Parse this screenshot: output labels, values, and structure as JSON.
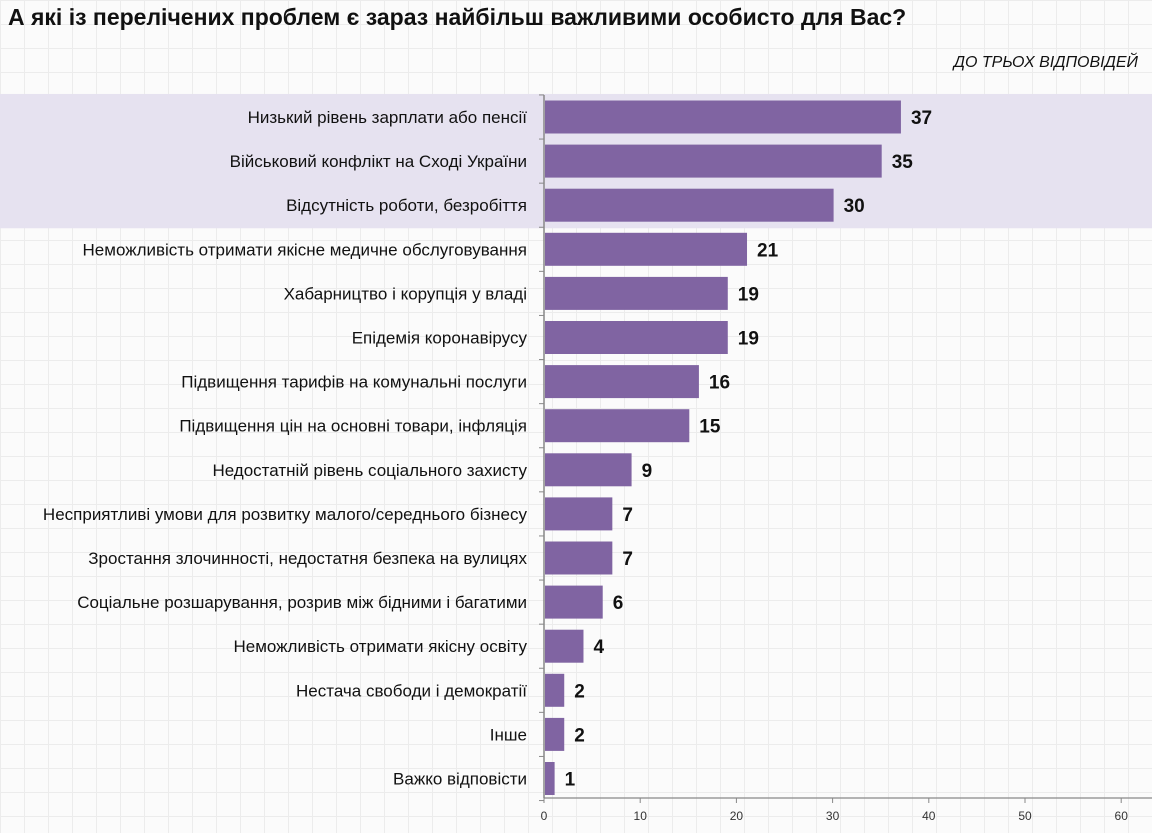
{
  "title": "А які із перелічених проблем є зараз найбільш важливими особисто для Вас?",
  "subtitle": "ДО ТРЬОХ ВІДПОВІДЕЙ",
  "colors": {
    "bar": "#8064a2",
    "highlight": "#e6e2f0",
    "axis": "#888888",
    "text": "#111111"
  },
  "chart_data": {
    "type": "bar",
    "orientation": "horizontal",
    "categories": [
      "Низький рівень зарплати або пенсії",
      "Військовий конфлікт на Сході України",
      "Відсутність роботи, безробіття",
      "Неможливість отримати якісне медичне обслуговування",
      "Хабарництво і корупція у владі",
      "Епідемія коронавірусу",
      "Підвищення тарифів на комунальні послуги",
      "Підвищення цін на основні товари, інфляція",
      "Недостатній рівень соціального захисту",
      "Несприятливі умови для розвитку малого/середнього бізнесу",
      "Зростання злочинності, недостатня безпека на вулицях",
      "Соціальне розшарування, розрив між бідними і багатими",
      "Неможливість отримати якісну освіту",
      "Нестача свободи і демократії",
      "Інше",
      "Важко відповісти"
    ],
    "values": [
      37,
      35,
      30,
      21,
      19,
      19,
      16,
      15,
      9,
      7,
      7,
      6,
      4,
      2,
      2,
      1
    ],
    "xlim": [
      0,
      60
    ],
    "xticks": [
      "0",
      "10",
      "20",
      "30",
      "40",
      "50",
      "60"
    ],
    "highlighted_top": 3,
    "data_labels": true,
    "grid": true
  }
}
